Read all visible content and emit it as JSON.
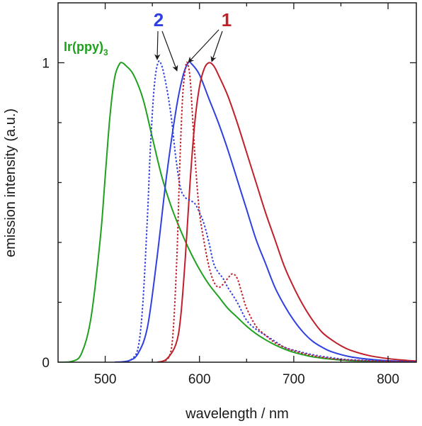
{
  "chart_data": {
    "type": "line",
    "xlabel": "wavelength / nm",
    "ylabel": "emission intensity (a.u.)",
    "xlim": [
      450,
      830
    ],
    "ylim": [
      0,
      1.2
    ],
    "xticks": [
      500,
      600,
      700,
      800
    ],
    "x_minor_step": 50,
    "yticks": [
      0,
      1
    ],
    "y_minor_step": 0.2,
    "grid": false,
    "series": [
      {
        "name": "Ir(ppy)3",
        "color": "#1ea11e",
        "style": "solid",
        "points": [
          [
            450,
            0
          ],
          [
            465,
            0.003
          ],
          [
            475,
            0.03
          ],
          [
            485,
            0.15
          ],
          [
            495,
            0.42
          ],
          [
            500,
            0.62
          ],
          [
            505,
            0.82
          ],
          [
            510,
            0.95
          ],
          [
            515,
            0.995
          ],
          [
            518,
            1.0
          ],
          [
            522,
            0.99
          ],
          [
            530,
            0.96
          ],
          [
            540,
            0.88
          ],
          [
            550,
            0.75
          ],
          [
            560,
            0.62
          ],
          [
            570,
            0.52
          ],
          [
            580,
            0.44
          ],
          [
            590,
            0.37
          ],
          [
            600,
            0.31
          ],
          [
            610,
            0.26
          ],
          [
            620,
            0.22
          ],
          [
            630,
            0.18
          ],
          [
            640,
            0.15
          ],
          [
            650,
            0.12
          ],
          [
            660,
            0.095
          ],
          [
            670,
            0.075
          ],
          [
            680,
            0.058
          ],
          [
            690,
            0.044
          ],
          [
            700,
            0.033
          ],
          [
            710,
            0.025
          ],
          [
            720,
            0.018
          ],
          [
            740,
            0.01
          ],
          [
            760,
            0.005
          ],
          [
            800,
            0.002
          ],
          [
            830,
            0.001
          ]
        ]
      },
      {
        "name": "2",
        "color": "#2e40e0",
        "style": "solid",
        "points": [
          [
            510,
            0
          ],
          [
            525,
            0.005
          ],
          [
            535,
            0.03
          ],
          [
            545,
            0.12
          ],
          [
            555,
            0.35
          ],
          [
            565,
            0.62
          ],
          [
            575,
            0.84
          ],
          [
            582,
            0.95
          ],
          [
            588,
            1.0
          ],
          [
            592,
            0.995
          ],
          [
            600,
            0.96
          ],
          [
            610,
            0.88
          ],
          [
            620,
            0.8
          ],
          [
            630,
            0.71
          ],
          [
            640,
            0.61
          ],
          [
            650,
            0.51
          ],
          [
            660,
            0.41
          ],
          [
            670,
            0.33
          ],
          [
            680,
            0.25
          ],
          [
            690,
            0.19
          ],
          [
            700,
            0.14
          ],
          [
            710,
            0.1
          ],
          [
            720,
            0.07
          ],
          [
            730,
            0.05
          ],
          [
            740,
            0.035
          ],
          [
            760,
            0.018
          ],
          [
            780,
            0.01
          ],
          [
            800,
            0.005
          ],
          [
            830,
            0.002
          ]
        ]
      },
      {
        "name": "1",
        "color": "#c0202a",
        "style": "solid",
        "points": [
          [
            555,
            0
          ],
          [
            565,
            0.01
          ],
          [
            575,
            0.06
          ],
          [
            580,
            0.15
          ],
          [
            585,
            0.35
          ],
          [
            590,
            0.6
          ],
          [
            595,
            0.8
          ],
          [
            600,
            0.92
          ],
          [
            605,
            0.98
          ],
          [
            610,
            1.0
          ],
          [
            615,
            0.99
          ],
          [
            620,
            0.96
          ],
          [
            630,
            0.89
          ],
          [
            640,
            0.8
          ],
          [
            650,
            0.7
          ],
          [
            660,
            0.6
          ],
          [
            670,
            0.5
          ],
          [
            680,
            0.41
          ],
          [
            690,
            0.32
          ],
          [
            700,
            0.25
          ],
          [
            710,
            0.19
          ],
          [
            720,
            0.14
          ],
          [
            730,
            0.1
          ],
          [
            740,
            0.075
          ],
          [
            750,
            0.055
          ],
          [
            760,
            0.04
          ],
          [
            780,
            0.022
          ],
          [
            800,
            0.012
          ],
          [
            820,
            0.006
          ],
          [
            830,
            0.004
          ]
        ]
      },
      {
        "name": "2 (dashed)",
        "color": "#2e40e0",
        "style": "dotted",
        "points": [
          [
            520,
            0
          ],
          [
            528,
            0.01
          ],
          [
            535,
            0.05
          ],
          [
            540,
            0.2
          ],
          [
            545,
            0.5
          ],
          [
            548,
            0.72
          ],
          [
            552,
            0.92
          ],
          [
            556,
            1.0
          ],
          [
            560,
            0.99
          ],
          [
            565,
            0.92
          ],
          [
            570,
            0.82
          ],
          [
            575,
            0.68
          ],
          [
            580,
            0.58
          ],
          [
            585,
            0.55
          ],
          [
            590,
            0.54
          ],
          [
            595,
            0.53
          ],
          [
            600,
            0.5
          ],
          [
            605,
            0.46
          ],
          [
            610,
            0.4
          ],
          [
            615,
            0.33
          ],
          [
            620,
            0.3
          ],
          [
            625,
            0.28
          ],
          [
            630,
            0.25
          ],
          [
            640,
            0.2
          ],
          [
            650,
            0.14
          ],
          [
            660,
            0.11
          ],
          [
            670,
            0.09
          ],
          [
            680,
            0.07
          ],
          [
            690,
            0.05
          ],
          [
            700,
            0.04
          ],
          [
            720,
            0.025
          ],
          [
            740,
            0.015
          ],
          [
            760,
            0.008
          ],
          [
            800,
            0.004
          ],
          [
            830,
            0.002
          ]
        ]
      },
      {
        "name": "1 (dashed)",
        "color": "#c0202a",
        "style": "dotted",
        "points": [
          [
            560,
            0
          ],
          [
            568,
            0.02
          ],
          [
            572,
            0.1
          ],
          [
            576,
            0.35
          ],
          [
            579,
            0.65
          ],
          [
            582,
            0.88
          ],
          [
            585,
            0.98
          ],
          [
            587,
            1.0
          ],
          [
            590,
            0.95
          ],
          [
            593,
            0.8
          ],
          [
            596,
            0.65
          ],
          [
            600,
            0.5
          ],
          [
            605,
            0.4
          ],
          [
            610,
            0.32
          ],
          [
            615,
            0.27
          ],
          [
            620,
            0.25
          ],
          [
            625,
            0.26
          ],
          [
            630,
            0.28
          ],
          [
            635,
            0.295
          ],
          [
            640,
            0.28
          ],
          [
            645,
            0.23
          ],
          [
            650,
            0.18
          ],
          [
            660,
            0.12
          ],
          [
            670,
            0.09
          ],
          [
            680,
            0.065
          ],
          [
            690,
            0.05
          ],
          [
            700,
            0.038
          ],
          [
            720,
            0.022
          ],
          [
            740,
            0.012
          ],
          [
            760,
            0.007
          ],
          [
            800,
            0.003
          ],
          [
            830,
            0.001
          ]
        ]
      }
    ],
    "annotations": {
      "irppy_label": {
        "text": "Ir(ppy)",
        "subscript": "3",
        "color": "#1ea11e"
      },
      "label_2": {
        "text": "2",
        "color": "#2e40e0"
      },
      "label_1": {
        "text": "1",
        "color": "#c0202a"
      }
    }
  }
}
